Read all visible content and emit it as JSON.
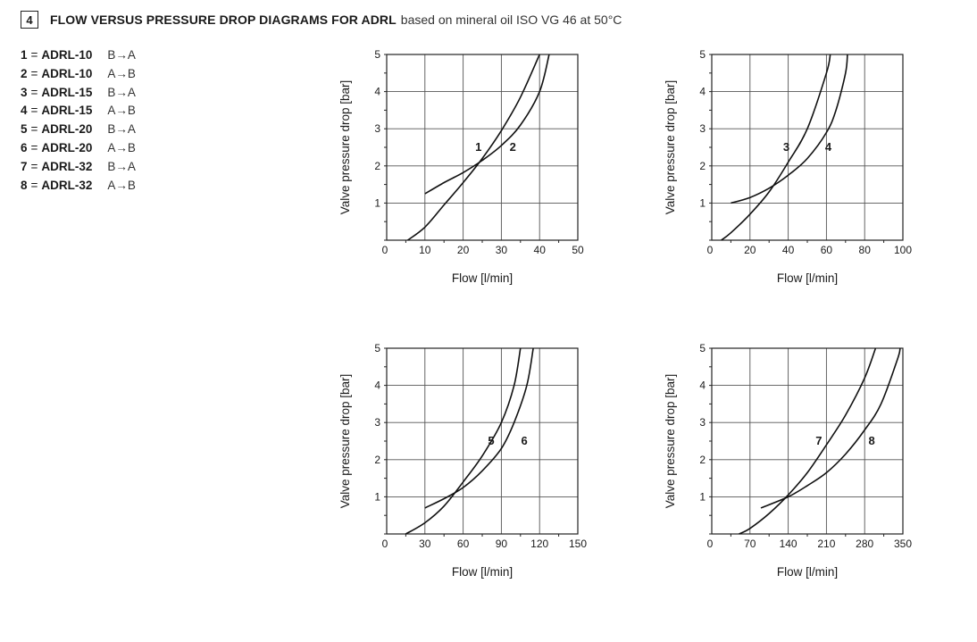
{
  "header": {
    "number": "4",
    "title": "FLOW VERSUS PRESSURE DROP DIAGRAMS FOR ADRL",
    "subtitle": "based on mineral oil ISO VG 46 at 50°C"
  },
  "legend": [
    {
      "num": "1",
      "eq": "=",
      "model": "ADRL-10",
      "dir": "B→A"
    },
    {
      "num": "2",
      "eq": "=",
      "model": "ADRL-10",
      "dir": "A→B"
    },
    {
      "num": "3",
      "eq": "=",
      "model": "ADRL-15",
      "dir": "B→A"
    },
    {
      "num": "4",
      "eq": "=",
      "model": "ADRL-15",
      "dir": "A→B"
    },
    {
      "num": "5",
      "eq": "=",
      "model": "ADRL-20",
      "dir": "B→A"
    },
    {
      "num": "6",
      "eq": "=",
      "model": "ADRL-20",
      "dir": "A→B"
    },
    {
      "num": "7",
      "eq": "=",
      "model": "ADRL-32",
      "dir": "B→A"
    },
    {
      "num": "8",
      "eq": "=",
      "model": "ADRL-32",
      "dir": "A→B"
    }
  ],
  "chart_data": [
    {
      "type": "line",
      "xlabel": "Flow [l/min]",
      "ylabel": "Valve pressure drop [bar]",
      "xlim": [
        0,
        50
      ],
      "ylim": [
        0,
        5
      ],
      "xticks": [
        10,
        20,
        30,
        40,
        50
      ],
      "xtick_labels": [
        "10",
        "20",
        "30",
        "40",
        "50"
      ],
      "yticks": [
        1,
        2,
        3,
        4,
        5
      ],
      "ytick_labels": [
        "1",
        "2",
        "3",
        "4",
        "5"
      ],
      "origin_label": "0",
      "grid": true,
      "series": [
        {
          "name": "1",
          "x": [
            5.5,
            10,
            15,
            20,
            25,
            30,
            35,
            40
          ],
          "y": [
            0.0,
            0.35,
            0.95,
            1.55,
            2.2,
            2.95,
            3.85,
            5.0
          ],
          "label_at": [
            24,
            2.4
          ]
        },
        {
          "name": "2",
          "x": [
            10,
            15,
            20,
            25,
            30,
            35,
            40,
            42.5
          ],
          "y": [
            1.25,
            1.55,
            1.82,
            2.15,
            2.55,
            3.1,
            4.0,
            5.0
          ],
          "label_at": [
            33,
            2.4
          ]
        }
      ]
    },
    {
      "type": "line",
      "xlabel": "Flow [l/min]",
      "ylabel": "Valve pressure drop [bar]",
      "xlim": [
        0,
        100
      ],
      "ylim": [
        0,
        5
      ],
      "xticks": [
        20,
        40,
        60,
        80,
        100
      ],
      "xtick_labels": [
        "20",
        "40",
        "60",
        "80",
        "100"
      ],
      "yticks": [
        1,
        2,
        3,
        4,
        5
      ],
      "ytick_labels": [
        "1",
        "2",
        "3",
        "4",
        "5"
      ],
      "origin_label": "0",
      "grid": true,
      "series": [
        {
          "name": "3",
          "x": [
            5,
            10,
            20,
            30,
            40,
            50,
            60,
            62
          ],
          "y": [
            0.0,
            0.2,
            0.7,
            1.3,
            2.1,
            3.0,
            4.5,
            5.0
          ],
          "label_at": [
            39,
            2.4
          ]
        },
        {
          "name": "4",
          "x": [
            10,
            20,
            30,
            40,
            50,
            60,
            65,
            70,
            71
          ],
          "y": [
            1.0,
            1.15,
            1.4,
            1.75,
            2.2,
            2.9,
            3.5,
            4.5,
            5.0
          ],
          "label_at": [
            61,
            2.4
          ]
        }
      ]
    },
    {
      "type": "line",
      "xlabel": "Flow [l/min]",
      "ylabel": "Valve pressure drop [bar]",
      "xlim": [
        0,
        150
      ],
      "ylim": [
        0,
        5
      ],
      "xticks": [
        30,
        60,
        90,
        120,
        150
      ],
      "xtick_labels": [
        "30",
        "60",
        "90",
        "120",
        "150"
      ],
      "yticks": [
        1,
        2,
        3,
        4,
        5
      ],
      "ytick_labels": [
        "1",
        "2",
        "3",
        "4",
        "5"
      ],
      "origin_label": "0",
      "grid": true,
      "series": [
        {
          "name": "5",
          "x": [
            15,
            30,
            45,
            60,
            75,
            90,
            100,
            105
          ],
          "y": [
            0.0,
            0.3,
            0.75,
            1.4,
            2.1,
            3.0,
            4.0,
            5.0
          ],
          "label_at": [
            82,
            2.4
          ]
        },
        {
          "name": "6",
          "x": [
            30,
            45,
            60,
            75,
            90,
            100,
            110,
            115
          ],
          "y": [
            0.7,
            0.95,
            1.25,
            1.7,
            2.3,
            3.0,
            4.0,
            5.0
          ],
          "label_at": [
            108,
            2.4
          ]
        }
      ]
    },
    {
      "type": "line",
      "xlabel": "Flow [l/min]",
      "ylabel": "Valve pressure drop [bar]",
      "xlim": [
        0,
        350
      ],
      "ylim": [
        0,
        5
      ],
      "xticks": [
        70,
        140,
        210,
        280,
        350
      ],
      "xtick_labels": [
        "70",
        "140",
        "210",
        "280",
        "350"
      ],
      "yticks": [
        1,
        2,
        3,
        4,
        5
      ],
      "ytick_labels": [
        "1",
        "2",
        "3",
        "4",
        "5"
      ],
      "origin_label": "0",
      "grid": true,
      "series": [
        {
          "name": "7",
          "x": [
            50,
            70,
            105,
            140,
            175,
            210,
            245,
            280,
            300
          ],
          "y": [
            0.0,
            0.15,
            0.55,
            1.05,
            1.65,
            2.4,
            3.2,
            4.2,
            5.0
          ],
          "label_at": [
            196,
            2.4
          ]
        },
        {
          "name": "8",
          "x": [
            90,
            140,
            175,
            210,
            245,
            280,
            310,
            340,
            345
          ],
          "y": [
            0.7,
            1.0,
            1.3,
            1.65,
            2.15,
            2.8,
            3.5,
            4.7,
            5.0
          ],
          "label_at": [
            293,
            2.4
          ]
        }
      ]
    }
  ]
}
